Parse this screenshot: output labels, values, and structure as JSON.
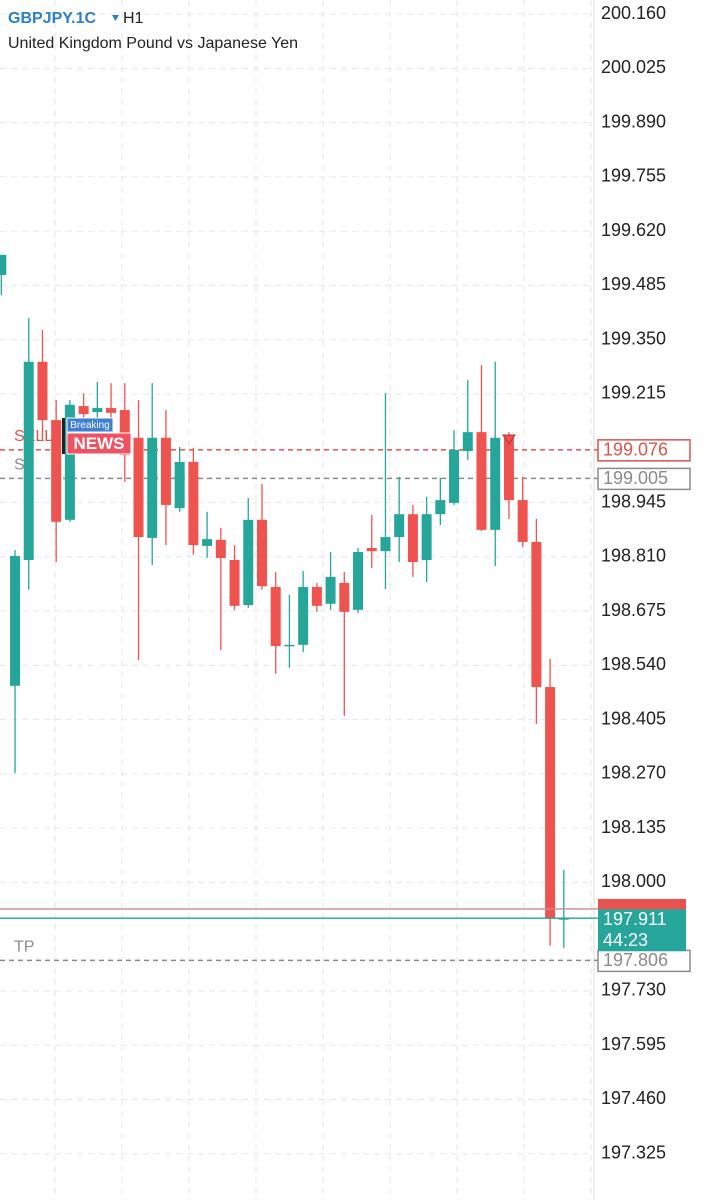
{
  "header": {
    "symbol": "GBPJPY.1C",
    "timeframe": "H1",
    "description": "United Kingdom Pound vs Japanese Yen"
  },
  "chart_data": {
    "type": "candlestick",
    "open": [
      199.511,
      198.489,
      198.802,
      199.295,
      199.15,
      198.902,
      199.185,
      199.17,
      199.18,
      199.175,
      199.106,
      198.857,
      199.106,
      198.931,
      199.046,
      198.837,
      198.852,
      198.802,
      198.69,
      198.902,
      198.735,
      198.588,
      198.591,
      198.735,
      198.693,
      198.745,
      198.678,
      198.832,
      198.824,
      198.859,
      198.916,
      198.802,
      198.916,
      198.944,
      199.073,
      199.12,
      198.877,
      199.106,
      198.951,
      198.847,
      198.486,
      197.908
    ],
    "high": [
      199.561,
      198.827,
      199.404,
      199.374,
      199.2,
      199.2,
      199.217,
      199.245,
      199.242,
      199.242,
      199.2,
      199.242,
      199.175,
      199.083,
      199.081,
      198.922,
      198.882,
      198.839,
      198.956,
      198.991,
      198.772,
      198.715,
      198.775,
      198.745,
      198.822,
      198.772,
      198.832,
      198.914,
      199.217,
      199.009,
      198.939,
      198.959,
      199.006,
      199.125,
      199.25,
      199.287,
      199.295,
      199.12,
      199.009,
      198.904,
      198.556,
      198.031
    ],
    "low": [
      199.461,
      198.272,
      198.728,
      199.101,
      198.797,
      198.897,
      199.15,
      199.138,
      199.15,
      198.996,
      198.553,
      198.79,
      198.839,
      198.922,
      198.815,
      198.807,
      198.578,
      198.678,
      198.683,
      198.728,
      198.519,
      198.534,
      198.573,
      198.673,
      198.678,
      198.414,
      198.67,
      198.782,
      198.73,
      198.797,
      198.76,
      198.747,
      198.889,
      198.939,
      199.051,
      198.874,
      198.787,
      198.904,
      198.834,
      198.394,
      197.842,
      197.837
    ],
    "close": [
      199.561,
      198.812,
      199.295,
      199.15,
      198.897,
      199.188,
      199.165,
      199.18,
      199.168,
      199.063,
      198.859,
      199.106,
      198.939,
      199.046,
      198.839,
      198.854,
      198.807,
      198.688,
      198.902,
      198.737,
      198.588,
      198.591,
      198.735,
      198.688,
      198.76,
      198.673,
      198.822,
      198.824,
      198.859,
      198.916,
      198.797,
      198.916,
      198.951,
      199.076,
      199.12,
      198.877,
      199.106,
      198.951,
      198.847,
      198.486,
      197.912,
      197.911
    ],
    "up_color": "#26a69a",
    "down_color": "#ef5350",
    "ylim": [
      197.21,
      200.195
    ],
    "yticks": [
      {
        "value": 200.16,
        "label": "200.160"
      },
      200.025,
      {
        "value": 199.89,
        "label": "199.890"
      },
      199.755,
      {
        "value": 199.62,
        "label": "199.620"
      },
      199.485,
      {
        "value": 199.35,
        "label": "199.350"
      },
      199.215,
      198.945,
      {
        "value": 198.81,
        "label": "198.810"
      },
      198.675,
      {
        "value": 198.54,
        "label": "198.540"
      },
      198.405,
      {
        "value": 198.27,
        "label": "198.270"
      },
      198.135,
      {
        "value": 198.0,
        "label": "198.000"
      },
      {
        "value": 197.73,
        "label": "197.730"
      },
      197.595,
      {
        "value": 197.46,
        "label": "197.460"
      },
      197.325
    ],
    "grid": true,
    "price_lines": [
      {
        "name": "SELL",
        "value": 199.076,
        "color": "#d9534f"
      },
      {
        "name": "SL",
        "value": 199.005,
        "color": "#8a8a8a"
      },
      {
        "name": "TP",
        "value": 197.806,
        "color": "#8a8a8a"
      }
    ],
    "bid": 197.911,
    "ask": 197.934,
    "countdown": "44:23",
    "news_badge": [
      "Breaking",
      "NEWS"
    ]
  }
}
